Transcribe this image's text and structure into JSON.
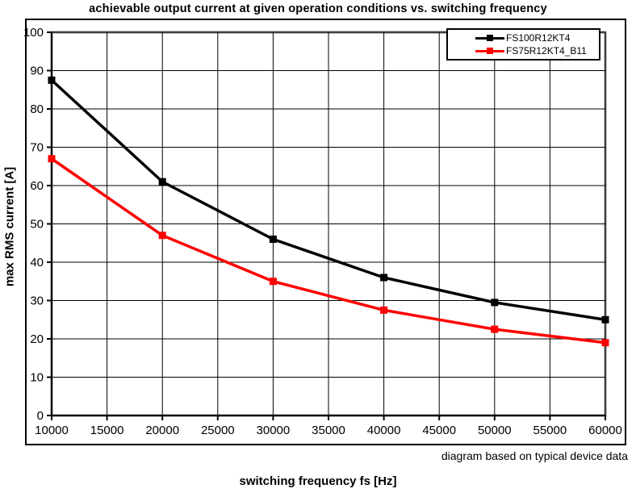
{
  "title": "achievable output current at given operation conditions vs. switching frequency",
  "footnote": "diagram based on typical device data",
  "chart_data": {
    "type": "line",
    "title": "achievable output current at given operation conditions vs. switching frequency",
    "xlabel": "switching frequency fs [Hz]",
    "ylabel": "max RMS current [A]",
    "x": [
      10000,
      20000,
      30000,
      40000,
      50000,
      60000
    ],
    "series": [
      {
        "name": "FS100R12KT4",
        "color": "#000000",
        "values": [
          87.5,
          61,
          46,
          36,
          29.5,
          25
        ]
      },
      {
        "name": "FS75R12KT4_B11",
        "color": "#ff0000",
        "values": [
          67,
          47,
          35,
          27.5,
          22.5,
          19
        ]
      }
    ],
    "xlim": [
      10000,
      60000
    ],
    "ylim": [
      0,
      100
    ],
    "x_ticks": [
      10000,
      15000,
      20000,
      25000,
      30000,
      35000,
      40000,
      45000,
      50000,
      55000,
      60000
    ],
    "y_ticks": [
      0,
      10,
      20,
      30,
      40,
      50,
      60,
      70,
      80,
      90,
      100
    ],
    "grid": true,
    "legend_position": "top-right",
    "marker": "square",
    "colors": {
      "grid": "#000000",
      "axis": "#000000",
      "plot_border": "#808080",
      "background": "#ffffff"
    }
  }
}
